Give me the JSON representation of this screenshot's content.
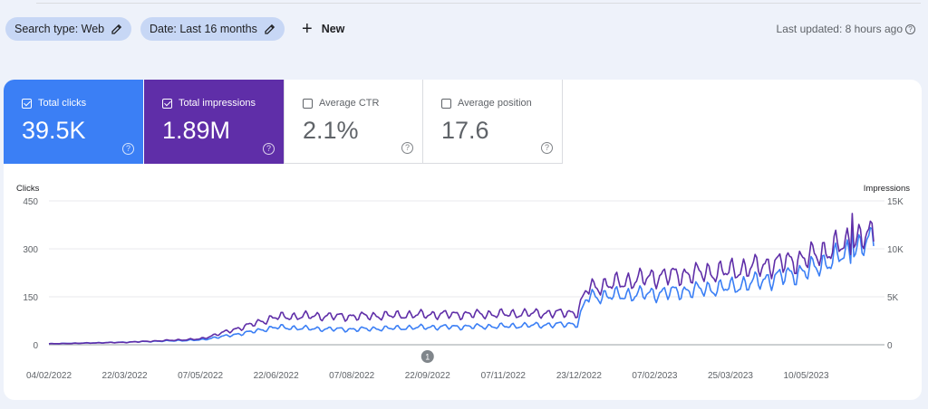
{
  "filters": {
    "search_type": "Search type: Web",
    "date": "Date: Last 16 months",
    "new_label": "New"
  },
  "updated": "Last updated: 8 hours ago",
  "metrics": [
    {
      "label": "Total clicks",
      "value": "39.5K",
      "checked": true,
      "color": "#3b7ff5"
    },
    {
      "label": "Total impressions",
      "value": "1.89M",
      "checked": true,
      "color": "#5f2ea8"
    },
    {
      "label": "Average CTR",
      "value": "2.1%",
      "checked": false
    },
    {
      "label": "Average position",
      "value": "17.6",
      "checked": false
    }
  ],
  "chart_data": {
    "type": "line",
    "left_axis_label": "Clicks",
    "right_axis_label": "Impressions",
    "left_ticks": [
      "450",
      "300",
      "150",
      "0"
    ],
    "right_ticks": [
      "15K",
      "10K",
      "5K",
      "0"
    ],
    "left_range": [
      0,
      450
    ],
    "right_range": [
      0,
      15000
    ],
    "x_labels": [
      "04/02/2022",
      "22/03/2022",
      "07/05/2022",
      "22/06/2022",
      "07/08/2022",
      "22/09/2022",
      "07/11/2022",
      "23/12/2022",
      "07/02/2023",
      "25/03/2023",
      "10/05/2023"
    ],
    "annotation": "1",
    "series": [
      {
        "name": "Clicks",
        "color": "#3b7ff5",
        "x": [
          "2022-02-04",
          "2022-03-22",
          "2022-05-07",
          "2022-06-01",
          "2022-06-22",
          "2022-07-15",
          "2022-08-07",
          "2022-09-22",
          "2022-11-07",
          "2022-12-22",
          "2022-12-28",
          "2023-02-07",
          "2023-03-25",
          "2023-05-10",
          "2023-06-10",
          "2023-06-20"
        ],
        "values": [
          3,
          8,
          15,
          35,
          55,
          50,
          48,
          55,
          58,
          65,
          150,
          160,
          180,
          230,
          300,
          330
        ]
      },
      {
        "name": "Impressions",
        "color": "#5f2ea8",
        "x": [
          "2022-02-04",
          "2022-03-22",
          "2022-05-07",
          "2022-06-01",
          "2022-06-22",
          "2022-07-15",
          "2022-08-07",
          "2022-09-22",
          "2022-11-07",
          "2022-12-22",
          "2022-12-28",
          "2023-02-07",
          "2023-03-25",
          "2023-05-10",
          "2023-06-10",
          "2023-06-20"
        ],
        "values": [
          100,
          250,
          600,
          1800,
          2900,
          3000,
          2950,
          3150,
          3200,
          3350,
          5900,
          7100,
          7700,
          9000,
          11000,
          11500
        ]
      }
    ]
  }
}
